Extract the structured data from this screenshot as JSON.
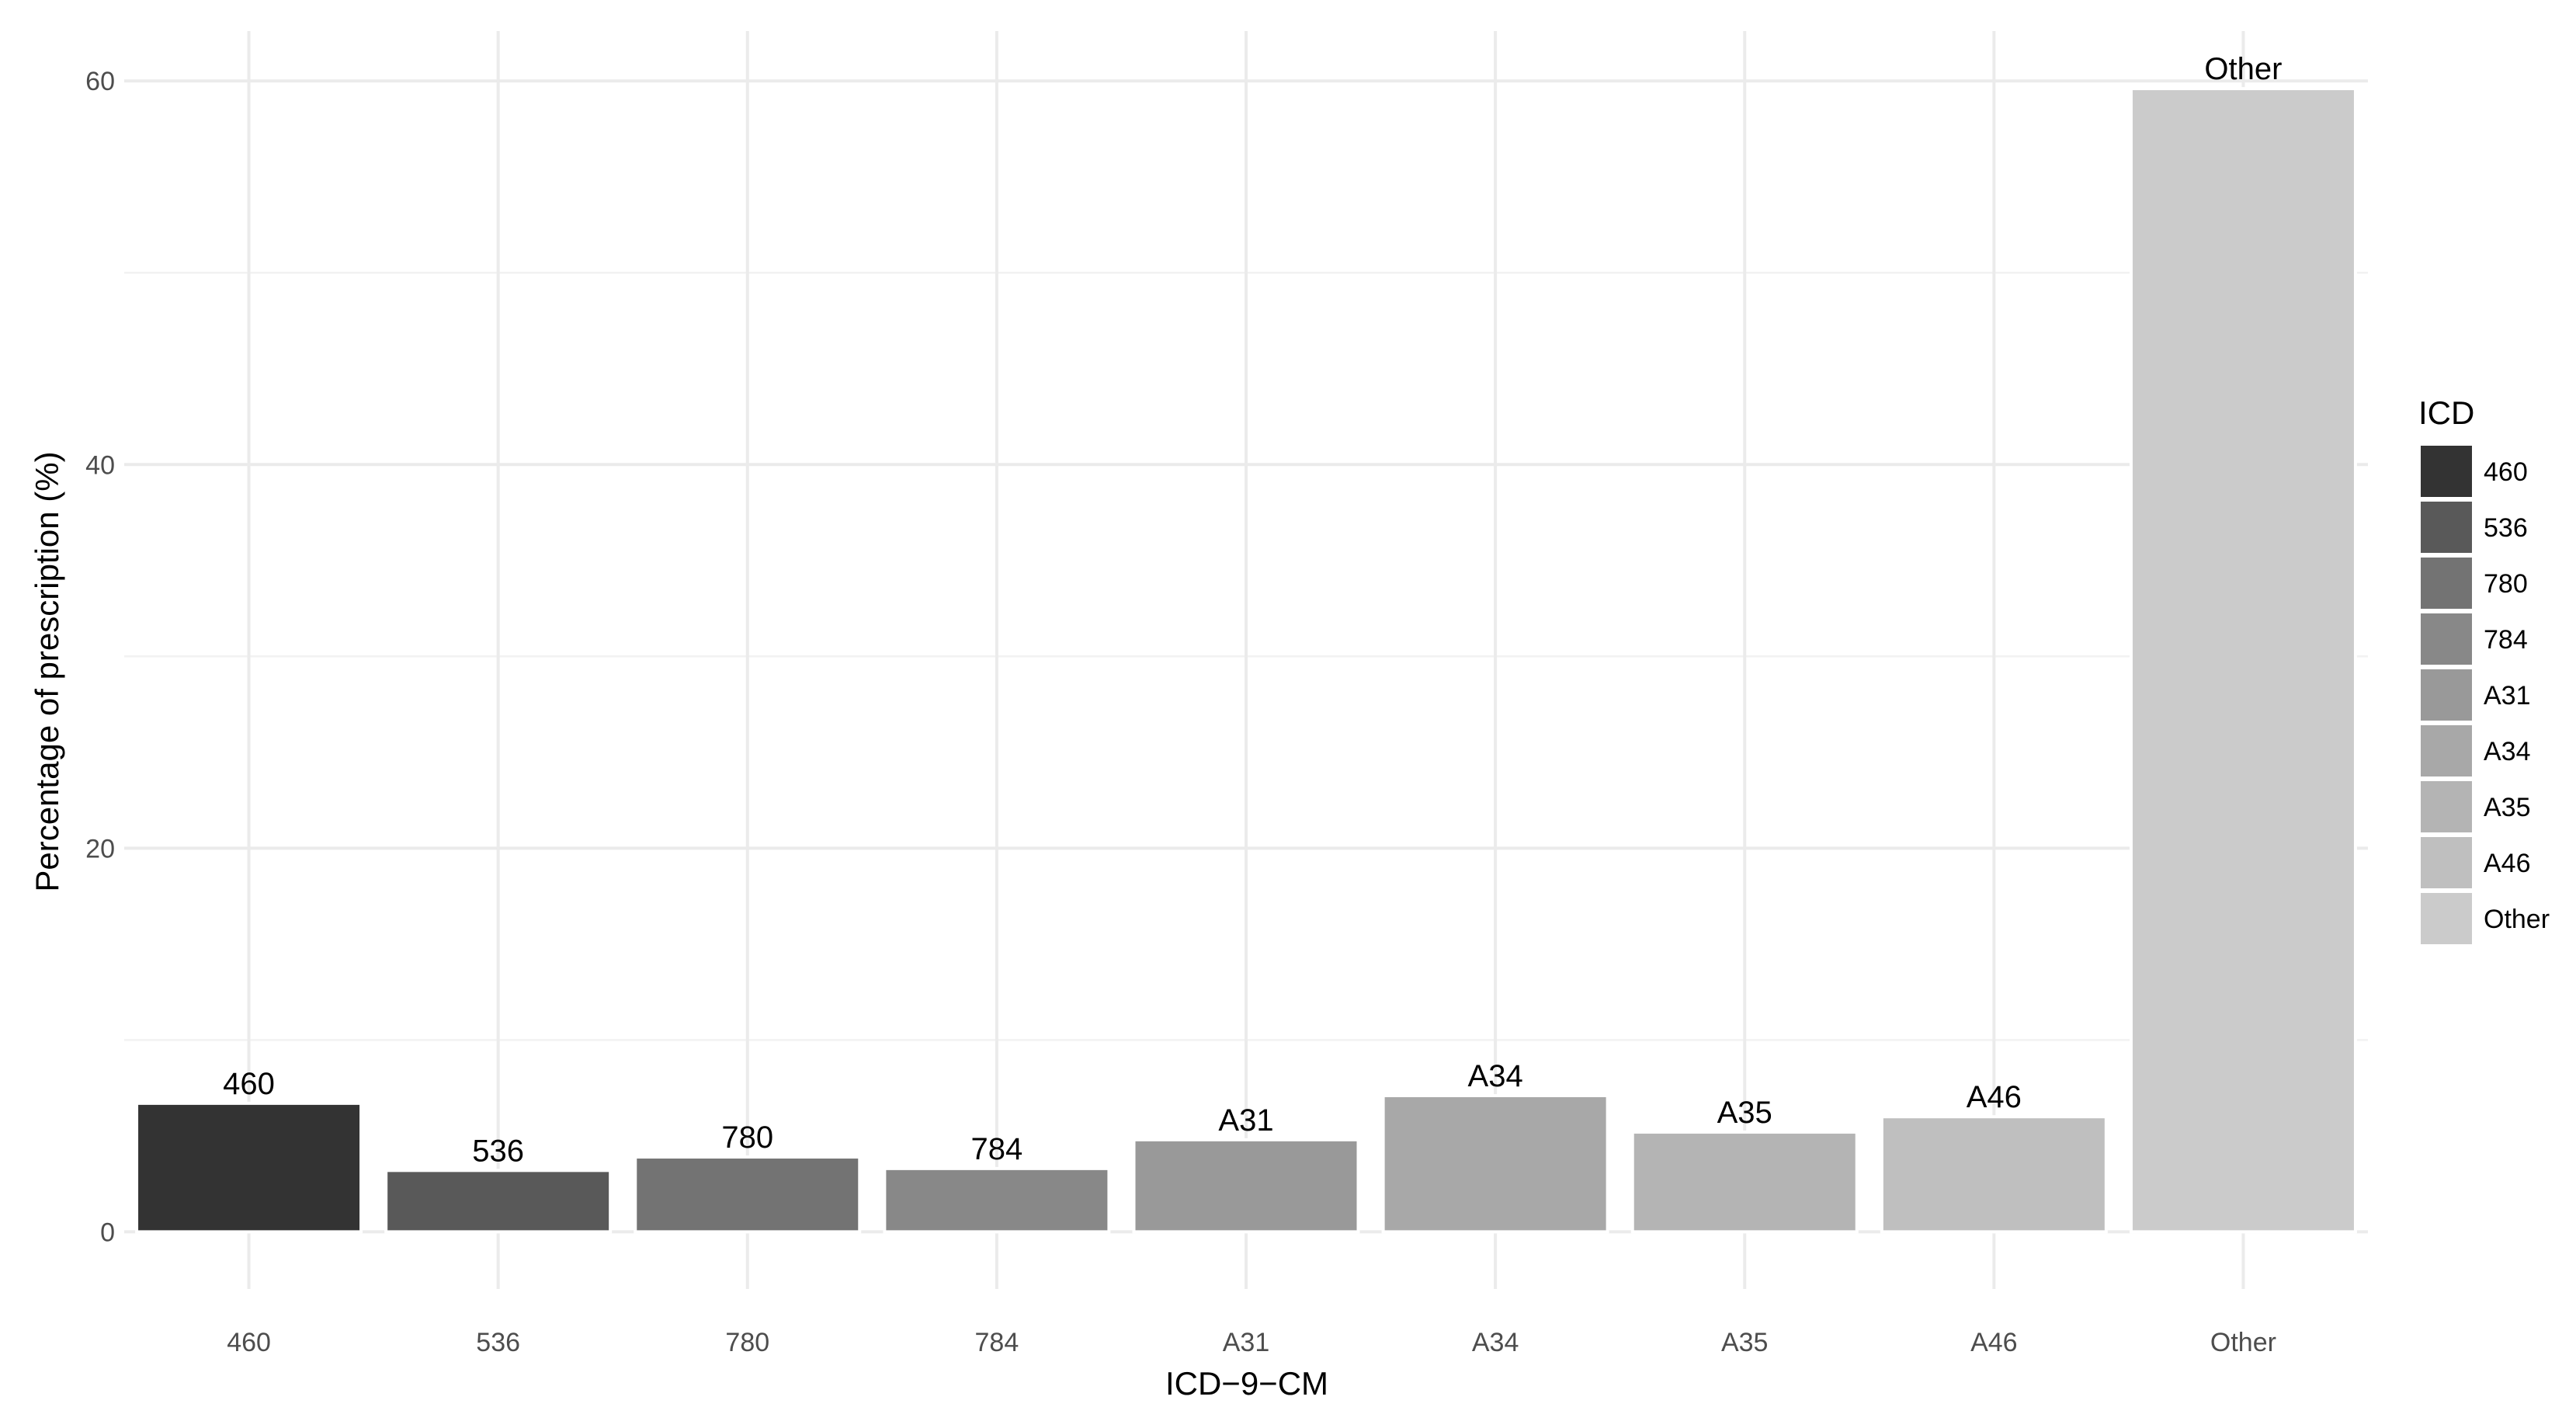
{
  "chart_data": {
    "type": "bar",
    "categories": [
      "460",
      "536",
      "780",
      "784",
      "A31",
      "A34",
      "A35",
      "A46",
      "Other"
    ],
    "values": [
      6.7,
      3.2,
      3.9,
      3.3,
      4.8,
      7.1,
      5.2,
      6.0,
      59.6
    ],
    "bar_labels": [
      "460",
      "536",
      "780",
      "784",
      "A31",
      "A34",
      "A35",
      "A46",
      "Other"
    ],
    "colors": [
      "#333333",
      "#595959",
      "#737373",
      "#888888",
      "#999999",
      "#a8a8a8",
      "#b4b4b4",
      "#bfbfbf",
      "#cbcbcb"
    ],
    "title": "",
    "xlabel": "ICD−9−CM",
    "ylabel": "Percentage of prescription (%)",
    "ylim": [
      -2.98,
      62.6
    ],
    "yticks": [
      0,
      20,
      40,
      60
    ],
    "grid": true,
    "legend": {
      "title": "ICD",
      "placement": "right",
      "items": [
        "460",
        "536",
        "780",
        "784",
        "A31",
        "A34",
        "A35",
        "A46",
        "Other"
      ]
    }
  }
}
